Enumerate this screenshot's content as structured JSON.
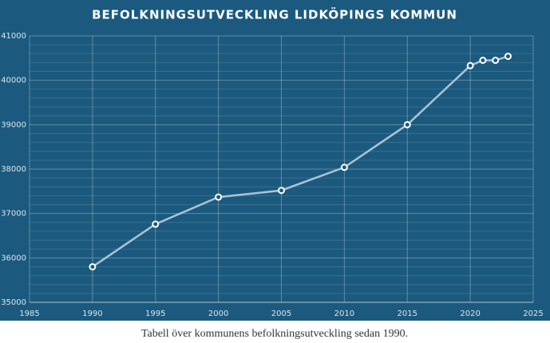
{
  "chart_data": {
    "type": "line",
    "title": "BEFOLKNINGSUTVECKLING LIDKÖPINGS KOMMUN",
    "caption": "Tabell över kommunens befolkningsutveckling sedan 1990.",
    "x": [
      1990,
      1995,
      2000,
      2005,
      2010,
      2015,
      2020,
      2021,
      2022,
      2023
    ],
    "series": [
      {
        "color": "#a9c4d6",
        "values": [
          35800,
          36760,
          37370,
          37520,
          38040,
          39000,
          40330,
          40450,
          40450,
          40540
        ]
      }
    ],
    "xlim": [
      1985,
      2025
    ],
    "xticks": [
      1985,
      1990,
      1995,
      2000,
      2005,
      2010,
      2015,
      2020,
      2025
    ],
    "ylim": [
      35000,
      41000
    ],
    "yticks": [
      35000,
      36000,
      37000,
      38000,
      39000,
      40000,
      41000
    ],
    "grid": true
  }
}
